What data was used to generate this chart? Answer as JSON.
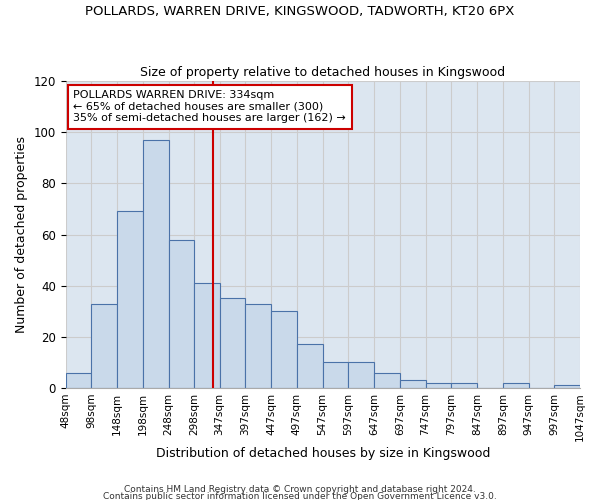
{
  "title": "POLLARDS, WARREN DRIVE, KINGSWOOD, TADWORTH, KT20 6PX",
  "subtitle": "Size of property relative to detached houses in Kingswood",
  "xlabel": "Distribution of detached houses by size in Kingswood",
  "ylabel": "Number of detached properties",
  "bin_edges": [
    48,
    98,
    148,
    198,
    248,
    298,
    347,
    397,
    447,
    497,
    547,
    597,
    647,
    697,
    747,
    797,
    847,
    897,
    947,
    997,
    1047
  ],
  "bin_labels": [
    "48sqm",
    "98sqm",
    "148sqm",
    "198sqm",
    "248sqm",
    "298sqm",
    "347sqm",
    "397sqm",
    "447sqm",
    "497sqm",
    "547sqm",
    "597sqm",
    "647sqm",
    "697sqm",
    "747sqm",
    "797sqm",
    "847sqm",
    "897sqm",
    "947sqm",
    "997sqm",
    "1047sqm"
  ],
  "counts": [
    6,
    33,
    69,
    97,
    58,
    41,
    35,
    33,
    30,
    17,
    10,
    10,
    6,
    3,
    2,
    2,
    0,
    2,
    0,
    1
  ],
  "property_size": 334,
  "bar_facecolor": "#c9d9ea",
  "bar_edgecolor": "#4a72a8",
  "vline_color": "#cc0000",
  "annotation_line1": "POLLARDS WARREN DRIVE: 334sqm",
  "annotation_line2": "← 65% of detached houses are smaller (300)",
  "annotation_line3": "35% of semi-detached houses are larger (162) →",
  "annotation_box_facecolor": "#ffffff",
  "annotation_box_edgecolor": "#cc0000",
  "ylim": [
    0,
    120
  ],
  "yticks": [
    0,
    20,
    40,
    60,
    80,
    100,
    120
  ],
  "grid_color": "#cccccc",
  "bg_color": "#dce6f0",
  "fig_bg_color": "#ffffff",
  "footer1": "Contains HM Land Registry data © Crown copyright and database right 2024.",
  "footer2": "Contains public sector information licensed under the Open Government Licence v3.0.",
  "title_fontsize": 9.5,
  "subtitle_fontsize": 9,
  "ylabel_fontsize": 9,
  "xlabel_fontsize": 9
}
